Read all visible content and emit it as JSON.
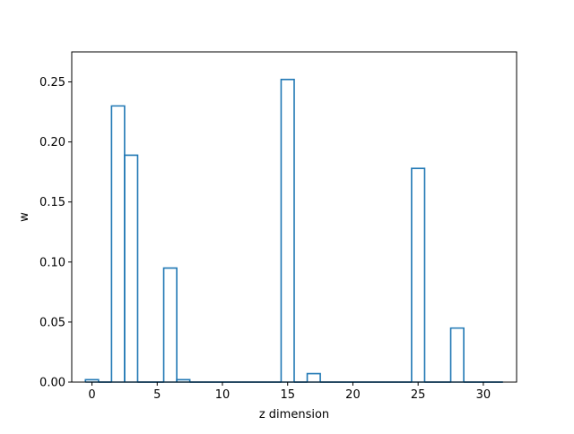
{
  "chart_data": {
    "type": "bar",
    "style": "step",
    "xlabel": "z dimension",
    "ylabel": "w",
    "xlim": [
      -1.55,
      32.55
    ],
    "ylim": [
      0,
      0.275
    ],
    "xticks": [
      0,
      5,
      10,
      15,
      20,
      25,
      30
    ],
    "xtick_labels": [
      "0",
      "5",
      "10",
      "15",
      "20",
      "25",
      "30"
    ],
    "yticks": [
      0,
      0.05,
      0.1,
      0.15,
      0.2,
      0.25
    ],
    "ytick_labels": [
      "0.00",
      "0.05",
      "0.10",
      "0.15",
      "0.20",
      "0.25"
    ],
    "grid": false,
    "line_color": "#1f77b4",
    "categories": [
      0,
      1,
      2,
      3,
      4,
      5,
      6,
      7,
      8,
      9,
      10,
      11,
      12,
      13,
      14,
      15,
      16,
      17,
      18,
      19,
      20,
      21,
      22,
      23,
      24,
      25,
      26,
      27,
      28,
      29,
      30,
      31
    ],
    "values": [
      0.002,
      0,
      0.23,
      0.189,
      0,
      0,
      0.095,
      0.002,
      0,
      0,
      0,
      0,
      0,
      0,
      0,
      0.252,
      0,
      0.007,
      0,
      0,
      0,
      0,
      0,
      0,
      0,
      0.178,
      0,
      0,
      0.045,
      0,
      0,
      0
    ]
  }
}
